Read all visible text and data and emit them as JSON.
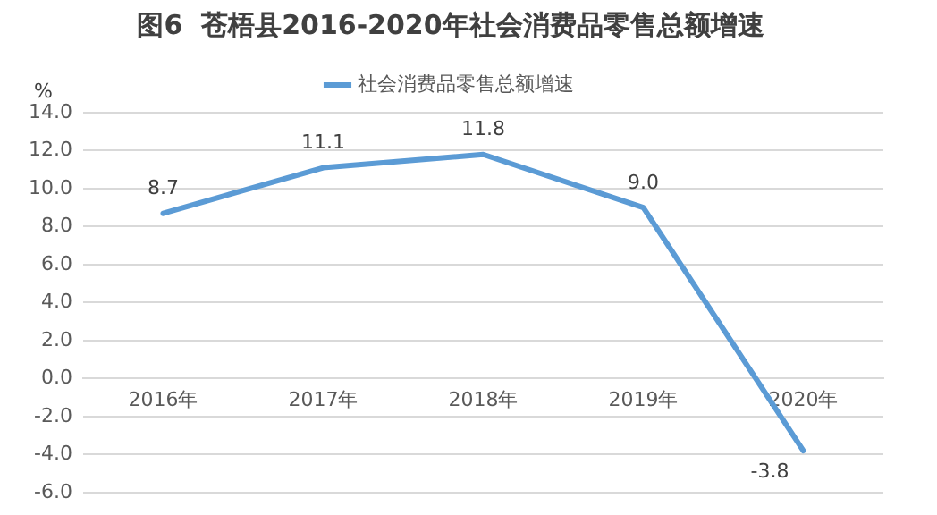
{
  "chart_data": {
    "type": "line",
    "title": "图6  苍梧县2016-2020年社会消费品零售总额增速",
    "ylabel": "%",
    "categories": [
      "2016年",
      "2017年",
      "2018年",
      "2019年",
      "2020年"
    ],
    "series": [
      {
        "name": "社会消费品零售总额增速",
        "color": "#5b9bd5",
        "values": [
          8.7,
          11.1,
          11.8,
          9.0,
          -3.8
        ]
      }
    ],
    "ylim": [
      -6,
      14
    ],
    "yticks": [
      {
        "value": -6,
        "label": "-6.0"
      },
      {
        "value": -4,
        "label": "-4.0"
      },
      {
        "value": -2,
        "label": "-2.0"
      },
      {
        "value": 0,
        "label": "0.0"
      },
      {
        "value": 2,
        "label": "2.0"
      },
      {
        "value": 4,
        "label": "4.0"
      },
      {
        "value": 6,
        "label": "6.0"
      },
      {
        "value": 8,
        "label": "8.0"
      },
      {
        "value": 10,
        "label": "10.0"
      },
      {
        "value": 12,
        "label": "12.0"
      },
      {
        "value": 14,
        "label": "14.0"
      }
    ],
    "value_labels": [
      "8.7",
      "11.1",
      "11.8",
      "9.0",
      "-3.8"
    ],
    "grid": "y",
    "legend": "top",
    "marker": "none",
    "line_style": "solid"
  }
}
